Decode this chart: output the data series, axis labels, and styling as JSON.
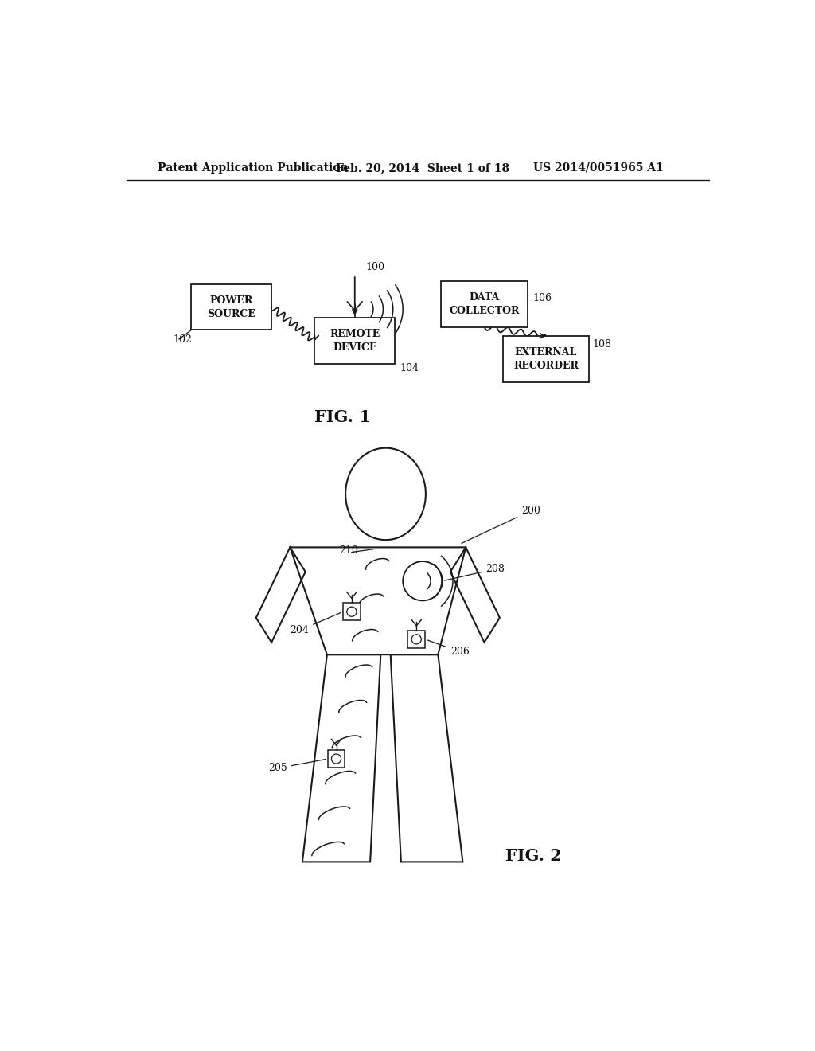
{
  "bg_color": "#ffffff",
  "header_text": "Patent Application Publication",
  "header_date": "Feb. 20, 2014  Sheet 1 of 18",
  "header_patent": "US 2014/0051965 A1",
  "fig1_label": "FIG. 1",
  "fig2_label": "FIG. 2",
  "line_color": "#1a1a1a",
  "text_color": "#111111"
}
